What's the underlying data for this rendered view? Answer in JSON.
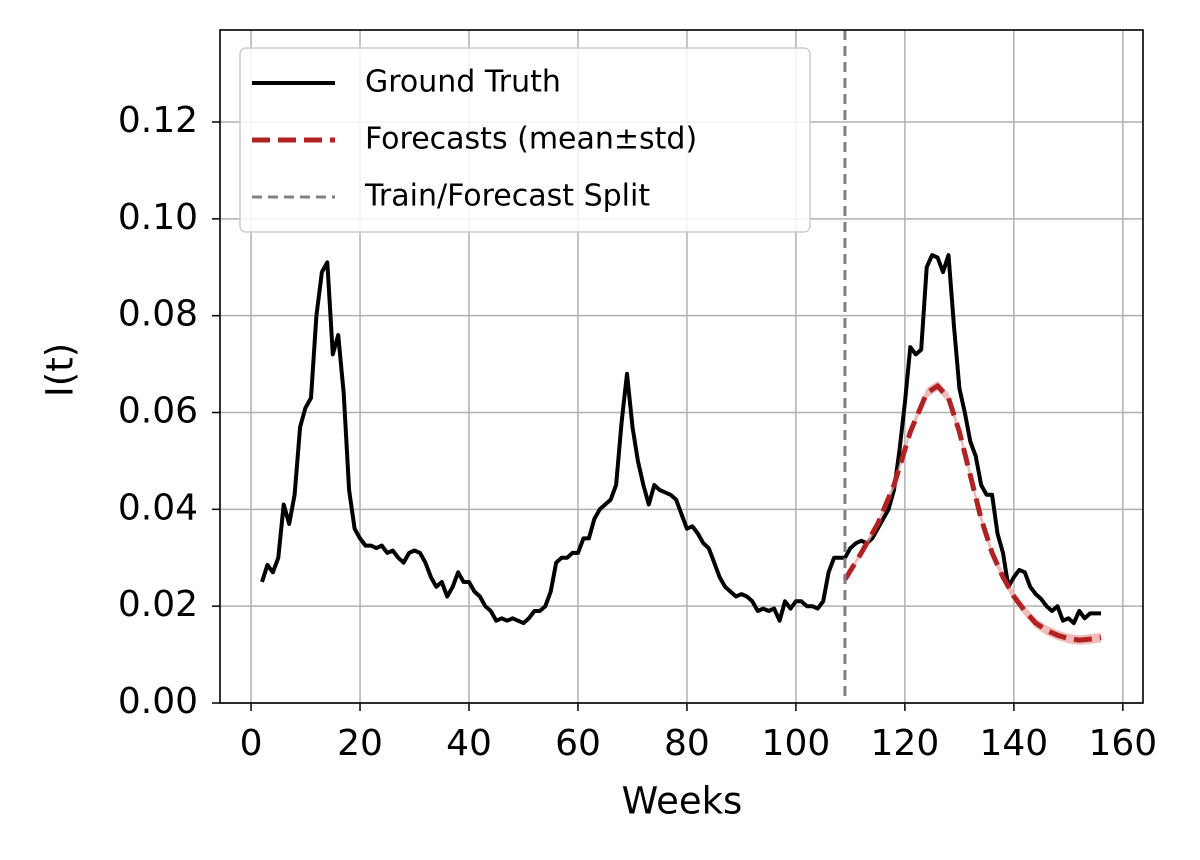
{
  "chart_data": {
    "type": "line",
    "xlabel": "Weeks",
    "ylabel": "I(t)",
    "xlim": [
      -5.7,
      163.7
    ],
    "ylim": [
      0,
      0.139
    ],
    "xticks": [
      0,
      20,
      40,
      60,
      80,
      100,
      120,
      140,
      160
    ],
    "yticks": [
      {
        "value": 0,
        "label": "0.00"
      },
      0.02,
      0.04,
      0.06,
      0.08,
      {
        "value": 0.1,
        "label": "0.10"
      },
      0.12
    ],
    "grid": true,
    "legend": "upper left",
    "series": [
      {
        "name": "Ground Truth",
        "color": "#000000",
        "style": "solid",
        "x": [
          2,
          3,
          4,
          5,
          6,
          7,
          8,
          9,
          10,
          11,
          12,
          13,
          14,
          15,
          16,
          17,
          18,
          19,
          20,
          21,
          22,
          23,
          24,
          25,
          26,
          27,
          28,
          29,
          30,
          31,
          32,
          33,
          34,
          35,
          36,
          37,
          38,
          39,
          40,
          41,
          42,
          43,
          44,
          45,
          46,
          47,
          48,
          49,
          50,
          51,
          52,
          53,
          54,
          55,
          56,
          57,
          58,
          59,
          60,
          61,
          62,
          63,
          64,
          65,
          66,
          67,
          68,
          69,
          70,
          71,
          72,
          73,
          74,
          75,
          76,
          77,
          78,
          79,
          80,
          81,
          82,
          83,
          84,
          85,
          86,
          87,
          88,
          89,
          90,
          91,
          92,
          93,
          94,
          95,
          96,
          97,
          98,
          99,
          100,
          101,
          102,
          103,
          104,
          105,
          106,
          107,
          108,
          109,
          110,
          111,
          112,
          113,
          114,
          115,
          116,
          117,
          118,
          119,
          120,
          121,
          122,
          123,
          124,
          125,
          126,
          127,
          128,
          129,
          130,
          131,
          132,
          133,
          134,
          135,
          136,
          137,
          138,
          139,
          140,
          141,
          142,
          143,
          144,
          145,
          146,
          147,
          148,
          149,
          150,
          151,
          152,
          153,
          154,
          155,
          156
        ],
        "values": [
          0.025,
          0.0285,
          0.027,
          0.03,
          0.041,
          0.037,
          0.043,
          0.057,
          0.061,
          0.063,
          0.08,
          0.089,
          0.091,
          0.072,
          0.076,
          0.064,
          0.044,
          0.036,
          0.034,
          0.0325,
          0.0325,
          0.032,
          0.0325,
          0.031,
          0.0315,
          0.03,
          0.029,
          0.031,
          0.0315,
          0.031,
          0.029,
          0.026,
          0.024,
          0.025,
          0.022,
          0.024,
          0.027,
          0.025,
          0.025,
          0.023,
          0.022,
          0.02,
          0.019,
          0.017,
          0.0175,
          0.017,
          0.0175,
          0.017,
          0.0165,
          0.0175,
          0.019,
          0.019,
          0.02,
          0.023,
          0.029,
          0.03,
          0.03,
          0.031,
          0.031,
          0.034,
          0.034,
          0.038,
          0.04,
          0.041,
          0.042,
          0.045,
          0.058,
          0.068,
          0.057,
          0.05,
          0.045,
          0.041,
          0.045,
          0.044,
          0.0435,
          0.043,
          0.042,
          0.039,
          0.036,
          0.0365,
          0.035,
          0.033,
          0.032,
          0.029,
          0.026,
          0.024,
          0.023,
          0.022,
          0.0225,
          0.022,
          0.021,
          0.019,
          0.0195,
          0.019,
          0.0195,
          0.017,
          0.021,
          0.0195,
          0.021,
          0.021,
          0.02,
          0.02,
          0.0195,
          0.021,
          0.027,
          0.03,
          0.03,
          0.03,
          0.032,
          0.033,
          0.0335,
          0.033,
          0.034,
          0.036,
          0.038,
          0.04,
          0.044,
          0.052,
          0.062,
          0.0735,
          0.072,
          0.073,
          0.09,
          0.0925,
          0.092,
          0.089,
          0.0925,
          0.078,
          0.065,
          0.06,
          0.054,
          0.051,
          0.045,
          0.043,
          0.043,
          0.035,
          0.031,
          0.024,
          0.026,
          0.0275,
          0.027,
          0.024,
          0.0225,
          0.0215,
          0.02,
          0.019,
          0.02,
          0.017,
          0.0175,
          0.0165,
          0.019,
          0.0175,
          0.0185,
          0.0185,
          0.0185
        ]
      },
      {
        "name": "Forecasts (mean±std)",
        "color": "#b22222",
        "style": "dashed",
        "band_color": "#e8a0a0",
        "x": [
          109,
          112,
          115,
          118,
          121,
          124,
          126,
          128,
          130,
          132,
          134,
          136,
          138,
          140,
          142,
          144,
          146,
          148,
          150,
          152,
          154,
          156
        ],
        "values": [
          0.0255,
          0.031,
          0.037,
          0.045,
          0.056,
          0.064,
          0.0655,
          0.063,
          0.056,
          0.047,
          0.038,
          0.031,
          0.026,
          0.022,
          0.019,
          0.0165,
          0.015,
          0.014,
          0.0133,
          0.013,
          0.0132,
          0.0135
        ],
        "std": [
          0.0005,
          0.0006,
          0.0007,
          0.0008,
          0.0009,
          0.001,
          0.001,
          0.001,
          0.001,
          0.001,
          0.001,
          0.001,
          0.001,
          0.001,
          0.001,
          0.001,
          0.001,
          0.001,
          0.001,
          0.001,
          0.001,
          0.001
        ]
      }
    ],
    "vlines": [
      {
        "name": "Train/Forecast Split",
        "color": "#808080",
        "x": 109
      }
    ]
  }
}
